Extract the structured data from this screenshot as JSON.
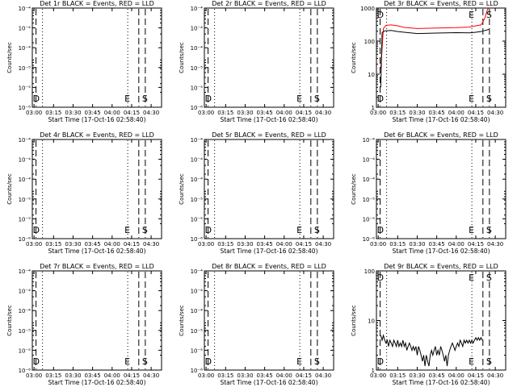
{
  "figure": {
    "x_tick_labels": [
      "03:00",
      "03:15",
      "03:30",
      "03:45",
      "04:00",
      "04:15",
      "04:30"
    ],
    "xlabel": "Start Time (17-Oct-16 02:58:40)",
    "ylabel": "Counts/sec"
  },
  "chart_data": [
    {
      "type": "line",
      "title": "Det 1r BLACK = Events, RED = LLD",
      "x_range": [
        "02:58:40",
        "04:38:00"
      ],
      "y_scale": "log",
      "ylim": [
        1e-06,
        0.0001
      ],
      "y_tick_labels": [
        "10⁻⁴",
        "10⁻⁴",
        "10⁻⁴",
        "10⁻⁵",
        "10⁻⁵",
        "10⁻⁶"
      ],
      "markers": [
        {
          "time": "03:01:30",
          "style": "dashed",
          "label": "D"
        },
        {
          "time": "03:06:30",
          "style": "dotted",
          "label": ""
        },
        {
          "time": "04:12:00",
          "style": "dotted",
          "label": "E"
        },
        {
          "time": "04:20:30",
          "style": "dashed",
          "label": ""
        },
        {
          "time": "04:25:30",
          "style": "dashed",
          "label": "S"
        }
      ],
      "series": []
    },
    {
      "type": "line",
      "title": "Det 2r BLACK = Events, RED = LLD",
      "x_range": [
        "02:58:40",
        "04:38:00"
      ],
      "y_scale": "log",
      "ylim": [
        1e-06,
        0.0001
      ],
      "y_tick_labels": [
        "10⁻⁴",
        "10⁻⁴",
        "10⁻⁴",
        "10⁻⁵",
        "10⁻⁵",
        "10⁻⁶"
      ],
      "markers": [
        {
          "time": "03:01:30",
          "style": "dashed",
          "label": "D"
        },
        {
          "time": "03:06:30",
          "style": "dotted",
          "label": ""
        },
        {
          "time": "04:12:00",
          "style": "dotted",
          "label": "E"
        },
        {
          "time": "04:20:30",
          "style": "dashed",
          "label": ""
        },
        {
          "time": "04:25:30",
          "style": "dashed",
          "label": "S"
        }
      ],
      "series": []
    },
    {
      "type": "line",
      "title": "Det 3r BLACK = Events, RED = LLD",
      "x_range": [
        "02:58:40",
        "04:38:00"
      ],
      "y_scale": "log",
      "ylim": [
        1,
        1000
      ],
      "y_tick_labels": [
        "1000",
        "100",
        "10",
        "1"
      ],
      "markers": [
        {
          "time": "03:01:30",
          "style": "dashed",
          "label": "D"
        },
        {
          "time": "03:06:30",
          "style": "dotted",
          "label": ""
        },
        {
          "time": "04:12:00",
          "style": "dotted",
          "label": "E"
        },
        {
          "time": "04:20:30",
          "style": "dashed",
          "label": ""
        },
        {
          "time": "04:25:30",
          "style": "dashed",
          "label": "S"
        }
      ],
      "series": [
        {
          "color": "#ff0000",
          "x": [
            "03:02",
            "03:04",
            "03:06",
            "03:10",
            "03:15",
            "03:20",
            "03:30",
            "03:45",
            "04:00",
            "04:10",
            "04:15",
            "04:19",
            "04:20",
            "04:22",
            "04:24",
            "04:25"
          ],
          "y": [
            15,
            240,
            300,
            310,
            290,
            260,
            240,
            250,
            255,
            265,
            290,
            310,
            350,
            500,
            900,
            1000
          ]
        },
        {
          "color": "#000000",
          "x": [
            "03:02",
            "03:03",
            "03:05",
            "03:10",
            "03:15",
            "03:20",
            "03:30",
            "03:45",
            "04:00",
            "04:10",
            "04:15",
            "04:19",
            "04:20",
            "04:22",
            "04:24",
            "04:25"
          ],
          "y": [
            4,
            180,
            205,
            210,
            195,
            185,
            170,
            175,
            180,
            178,
            185,
            195,
            200,
            210,
            220,
            230
          ]
        }
      ]
    },
    {
      "type": "line",
      "title": "Det 4r BLACK = Events, RED = LLD",
      "x_range": [
        "02:58:40",
        "04:38:00"
      ],
      "y_scale": "log",
      "ylim": [
        1e-06,
        0.0001
      ],
      "y_tick_labels": [
        "10⁻⁴",
        "10⁻⁴",
        "10⁻⁴",
        "10⁻⁵",
        "10⁻⁵",
        "10⁻⁶"
      ],
      "markers": [
        {
          "time": "03:01:30",
          "style": "dashed",
          "label": "D"
        },
        {
          "time": "03:06:30",
          "style": "dotted",
          "label": ""
        },
        {
          "time": "04:12:00",
          "style": "dotted",
          "label": "E"
        },
        {
          "time": "04:20:30",
          "style": "dashed",
          "label": ""
        },
        {
          "time": "04:25:30",
          "style": "dashed",
          "label": "S"
        }
      ],
      "series": []
    },
    {
      "type": "line",
      "title": "Det 5r BLACK = Events, RED = LLD",
      "x_range": [
        "02:58:40",
        "04:38:00"
      ],
      "y_scale": "log",
      "ylim": [
        1e-06,
        0.0001
      ],
      "y_tick_labels": [
        "10⁻⁴",
        "10⁻⁴",
        "10⁻⁴",
        "10⁻⁵",
        "10⁻⁵",
        "10⁻⁶"
      ],
      "markers": [
        {
          "time": "03:01:30",
          "style": "dashed",
          "label": "D"
        },
        {
          "time": "03:06:30",
          "style": "dotted",
          "label": ""
        },
        {
          "time": "04:12:00",
          "style": "dotted",
          "label": "E"
        },
        {
          "time": "04:20:30",
          "style": "dashed",
          "label": ""
        },
        {
          "time": "04:25:30",
          "style": "dashed",
          "label": "S"
        }
      ],
      "series": []
    },
    {
      "type": "line",
      "title": "Det 6r BLACK = Events, RED = LLD",
      "x_range": [
        "02:58:40",
        "04:38:00"
      ],
      "y_scale": "log",
      "ylim": [
        1e-06,
        0.0001
      ],
      "y_tick_labels": [
        "10⁻⁴",
        "10⁻⁴",
        "10⁻⁴",
        "10⁻⁵",
        "10⁻⁵",
        "10⁻⁶"
      ],
      "markers": [
        {
          "time": "03:01:30",
          "style": "dashed",
          "label": "D"
        },
        {
          "time": "03:06:30",
          "style": "dotted",
          "label": ""
        },
        {
          "time": "04:12:00",
          "style": "dotted",
          "label": "E"
        },
        {
          "time": "04:20:30",
          "style": "dashed",
          "label": ""
        },
        {
          "time": "04:25:30",
          "style": "dashed",
          "label": "S"
        }
      ],
      "series": []
    },
    {
      "type": "line",
      "title": "Det 7r BLACK = Events, RED = LLD",
      "x_range": [
        "02:58:40",
        "04:38:00"
      ],
      "y_scale": "log",
      "ylim": [
        1e-06,
        0.0001
      ],
      "y_tick_labels": [
        "10⁻⁴",
        "10⁻⁴",
        "10⁻⁴",
        "10⁻⁵",
        "10⁻⁵",
        "10⁻⁶"
      ],
      "markers": [
        {
          "time": "03:01:30",
          "style": "dashed",
          "label": "D"
        },
        {
          "time": "03:06:30",
          "style": "dotted",
          "label": ""
        },
        {
          "time": "04:12:00",
          "style": "dotted",
          "label": "E"
        },
        {
          "time": "04:20:30",
          "style": "dashed",
          "label": ""
        },
        {
          "time": "04:25:30",
          "style": "dashed",
          "label": "S"
        }
      ],
      "series": []
    },
    {
      "type": "line",
      "title": "Det 8r BLACK = Events, RED = LLD",
      "x_range": [
        "02:58:40",
        "04:38:00"
      ],
      "y_scale": "log",
      "ylim": [
        1e-06,
        0.0001
      ],
      "y_tick_labels": [
        "10⁻⁴",
        "10⁻⁴",
        "10⁻⁴",
        "10⁻⁵",
        "10⁻⁵",
        "10⁻⁶"
      ],
      "markers": [
        {
          "time": "03:01:30",
          "style": "dashed",
          "label": "D"
        },
        {
          "time": "03:06:30",
          "style": "dotted",
          "label": ""
        },
        {
          "time": "04:12:00",
          "style": "dotted",
          "label": "E"
        },
        {
          "time": "04:20:30",
          "style": "dashed",
          "label": ""
        },
        {
          "time": "04:25:30",
          "style": "dashed",
          "label": "S"
        }
      ],
      "series": []
    },
    {
      "type": "line",
      "title": "Det 9r BLACK = Events, RED = LLD",
      "x_range": [
        "02:58:40",
        "04:38:00"
      ],
      "y_scale": "log",
      "ylim": [
        1,
        100
      ],
      "y_tick_labels": [
        "100",
        "10",
        "1"
      ],
      "markers": [
        {
          "time": "03:01:30",
          "style": "dashed",
          "label": "D"
        },
        {
          "time": "03:06:30",
          "style": "dotted",
          "label": ""
        },
        {
          "time": "04:12:00",
          "style": "dotted",
          "label": "E"
        },
        {
          "time": "04:20:30",
          "style": "dashed",
          "label": ""
        },
        {
          "time": "04:25:30",
          "style": "dashed",
          "label": "S"
        }
      ],
      "series": [
        {
          "color": "#000000",
          "x": [
            "03:02",
            "03:03",
            "03:04",
            "03:05",
            "03:06",
            "03:07",
            "03:08",
            "03:09",
            "03:10",
            "03:11",
            "03:12",
            "03:13",
            "03:14",
            "03:15",
            "03:16",
            "03:17",
            "03:18",
            "03:19",
            "03:20",
            "03:21",
            "03:22",
            "03:23",
            "03:24",
            "03:25",
            "03:26",
            "03:27",
            "03:28",
            "03:29",
            "03:30",
            "03:31",
            "03:32",
            "03:33",
            "03:34",
            "03:35",
            "03:36",
            "03:37",
            "03:38",
            "03:39",
            "03:40",
            "03:41",
            "03:42",
            "03:43",
            "03:44",
            "03:45",
            "03:46",
            "03:47",
            "03:48",
            "03:49",
            "03:50",
            "03:51",
            "03:52",
            "03:53",
            "03:54",
            "03:55",
            "03:56",
            "03:57",
            "03:58",
            "03:59",
            "04:00",
            "04:01",
            "04:02",
            "04:03",
            "04:04",
            "04:05",
            "04:06",
            "04:07",
            "04:08",
            "04:09",
            "04:10",
            "04:11",
            "04:12",
            "04:13",
            "04:14",
            "04:15",
            "04:16",
            "04:17",
            "04:18",
            "04:19",
            "04:20"
          ],
          "y": [
            5,
            4,
            5,
            4,
            3.5,
            4,
            3,
            4,
            3.5,
            3,
            4,
            3.5,
            3,
            4,
            3,
            3.5,
            3,
            4,
            3,
            3.5,
            2.5,
            3,
            3.5,
            3,
            2.5,
            3,
            2.5,
            3,
            2,
            3,
            2.5,
            2,
            1.5,
            2,
            1.2,
            2,
            1.5,
            1.2,
            2,
            2.5,
            2,
            2.5,
            3,
            2,
            2.5,
            2,
            3,
            2.5,
            2,
            1.5,
            2,
            1.2,
            2,
            2.5,
            3,
            3.5,
            3,
            2.5,
            3,
            3.5,
            3,
            4,
            3.5,
            3,
            4,
            3.5,
            4,
            3.5,
            4,
            3.5,
            4,
            3.5,
            4,
            4.5,
            4,
            4.5,
            4,
            4.5,
            4
          ]
        }
      ]
    }
  ]
}
